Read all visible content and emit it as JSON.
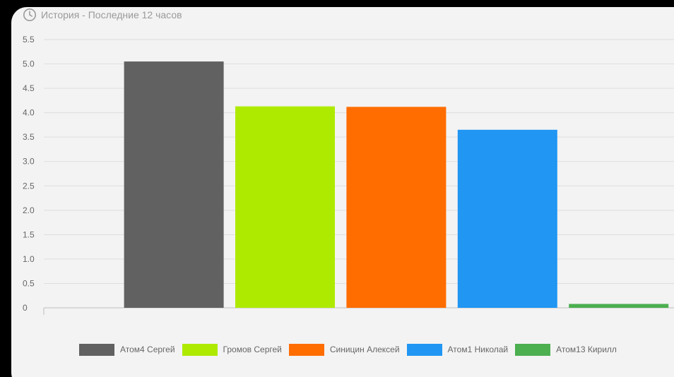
{
  "header": {
    "title": "История - Последние 12 часов",
    "icon": "clock-icon"
  },
  "chart_data": {
    "type": "bar",
    "categories": [
      "Атом4 Сергей",
      "Громов Сергей",
      "Синицин Алексей",
      "Атом1 Николай",
      "Атом13 Кирилл"
    ],
    "values": [
      5.05,
      4.13,
      4.12,
      3.65,
      0.08
    ],
    "colors": [
      "#616161",
      "#aeea00",
      "#ff6d00",
      "#2196f3",
      "#4caf50"
    ],
    "yticks": [
      "0",
      "0.5",
      "1.0",
      "1.5",
      "2.0",
      "2.5",
      "3.0",
      "3.5",
      "4.0",
      "4.5",
      "5.0",
      "5.5"
    ],
    "ylim": [
      0,
      5.5
    ],
    "grid": true,
    "legend": "bottom",
    "legend_labels": [
      "Атом4 Сергей",
      "Громов Сергей",
      "Синицин Алексей",
      "Атом1 Николай",
      "Атом13 Кирилл"
    ]
  }
}
